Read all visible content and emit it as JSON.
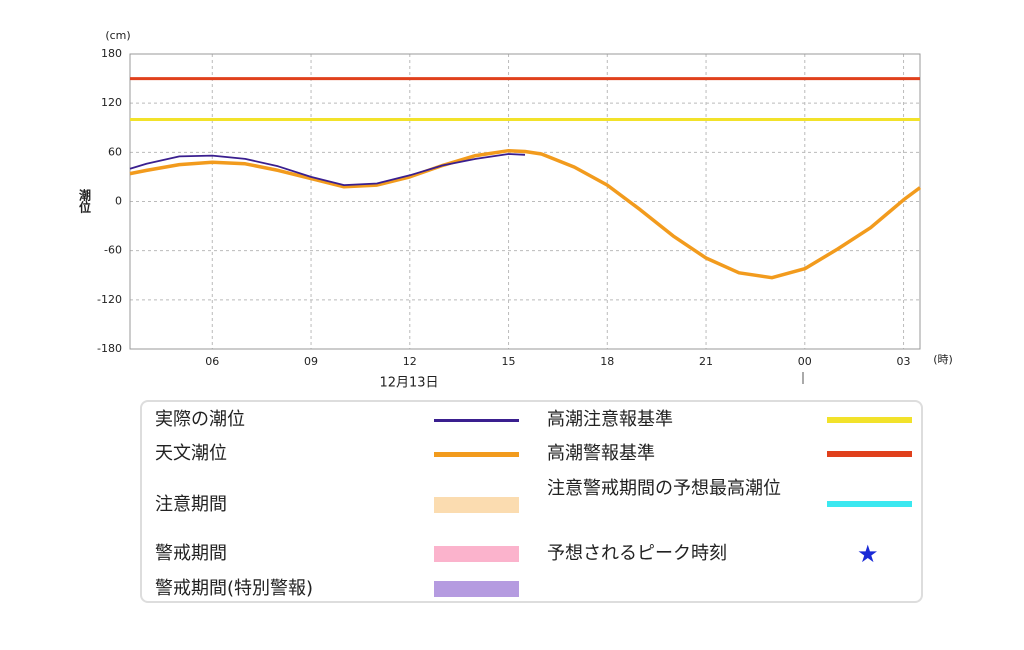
{
  "chart_data": {
    "type": "line",
    "y_unit": "(cm)",
    "ylabel": "潮位",
    "x_unit": "(時)",
    "date_label": "12月13日",
    "xlim": [
      3.5,
      27.5
    ],
    "xticks": [
      {
        "value": 6,
        "label": "06"
      },
      {
        "value": 9,
        "label": "09"
      },
      12,
      15,
      18,
      21,
      {
        "value": 24,
        "label": "00"
      },
      {
        "value": 27,
        "label": "03"
      }
    ],
    "ylim": [
      -180,
      180
    ],
    "yticks": [
      180,
      120,
      60,
      0,
      -60,
      -120,
      -180
    ],
    "grid": true,
    "x": [
      3.5,
      4,
      5,
      6,
      7,
      8,
      9,
      10,
      11,
      12,
      13,
      14,
      15,
      15.5,
      16,
      17,
      18,
      19,
      20,
      21,
      22,
      23,
      24,
      25,
      26,
      27,
      27.5
    ],
    "series": [
      {
        "name": "実際の潮位",
        "color": "#3a1f8f",
        "values": [
          40,
          46,
          55,
          56,
          52,
          43,
          30,
          20,
          22,
          32,
          44,
          52,
          58,
          57,
          null,
          null,
          null,
          null,
          null,
          null,
          null,
          null,
          null,
          null,
          null,
          null,
          null
        ]
      },
      {
        "name": "天文潮位",
        "color": "#f29b1d",
        "values": [
          34,
          38,
          45,
          48,
          46,
          38,
          28,
          18,
          20,
          30,
          44,
          56,
          62,
          61,
          58,
          42,
          20,
          -10,
          -42,
          -69,
          -87,
          -93,
          -82,
          -58,
          -32,
          2,
          17
        ]
      }
    ],
    "reference_lines": [
      {
        "name": "高潮注意報基準",
        "value": 100,
        "color": "#f2e22a"
      },
      {
        "name": "高潮警報基準",
        "value": 150,
        "color": "#e0401c"
      }
    ],
    "legend_extra": [
      {
        "name": "注意期間",
        "color": "#fbdcb0",
        "kind": "band"
      },
      {
        "name": "警戒期間",
        "color": "#fbb3cc",
        "kind": "band"
      },
      {
        "name": "警戒期間(特別警報)",
        "color": "#b59be0",
        "kind": "band"
      },
      {
        "name": "注意警戒期間の予想最高潮位",
        "color": "#3be8f0",
        "kind": "line"
      },
      {
        "name": "予想されるピーク時刻",
        "color": "#1a2ad6",
        "kind": "star"
      }
    ]
  }
}
